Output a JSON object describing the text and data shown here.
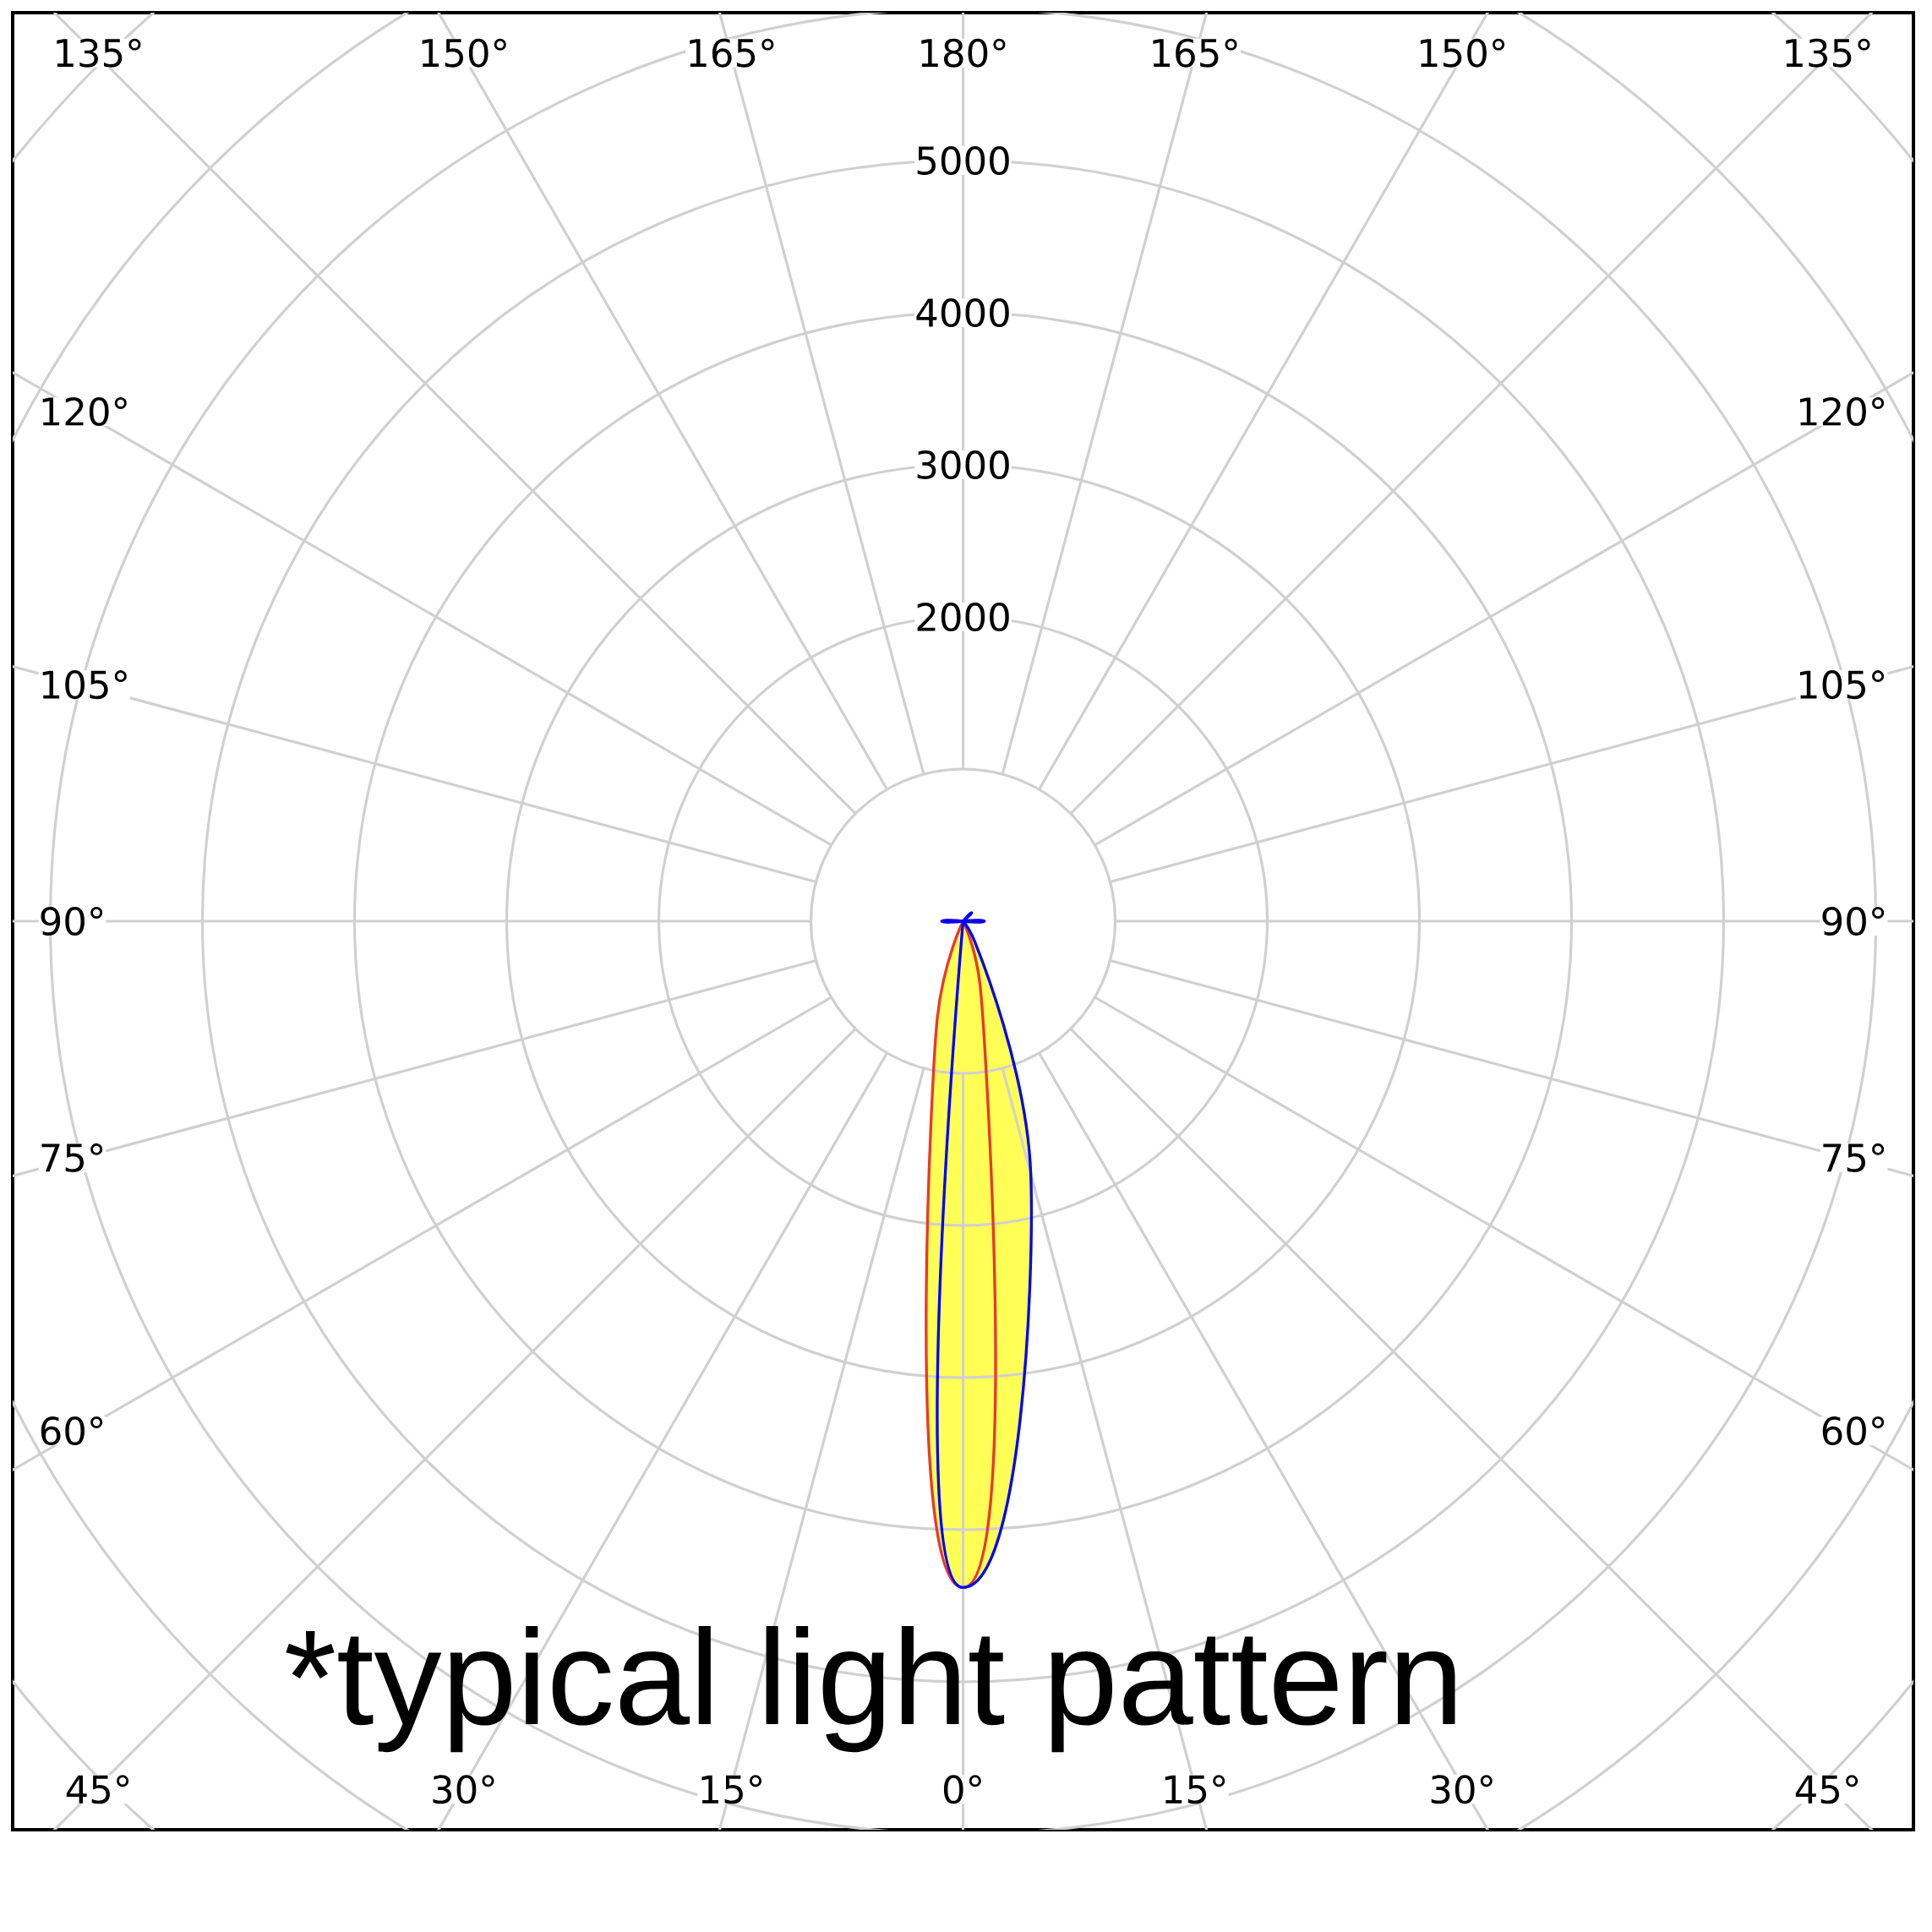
{
  "chart_data": {
    "type": "radar",
    "categories": [
      "180°",
      "165°",
      "150°",
      "135°",
      "120°",
      "105°",
      "90°",
      "75°",
      "60°",
      "45°",
      "30°",
      "15°",
      "0°",
      "15°",
      "30°",
      "45°",
      "60°",
      "75°",
      "90°",
      "105°",
      "120°",
      "135°",
      "150°",
      "165°"
    ],
    "ylim": [
      0,
      8000
    ],
    "yticks": [
      2000,
      3000,
      4000,
      5000
    ],
    "grid": true,
    "series": [
      {
        "color": "#e8392c",
        "values": [
          0,
          0,
          0,
          0,
          0,
          0,
          140,
          0,
          0,
          0,
          0,
          430,
          4380,
          650,
          0,
          0,
          0,
          0,
          140,
          0,
          0,
          0,
          0,
          0
        ]
      },
      {
        "color": "#0000ff",
        "values": [
          0,
          0,
          0,
          80,
          0,
          0,
          140,
          0,
          0,
          0,
          150,
          1720,
          4380,
          0,
          0,
          0,
          0,
          0,
          140,
          0,
          0,
          0,
          0,
          0
        ]
      }
    ],
    "annotations": [
      "*typical light pattern"
    ]
  }
}
